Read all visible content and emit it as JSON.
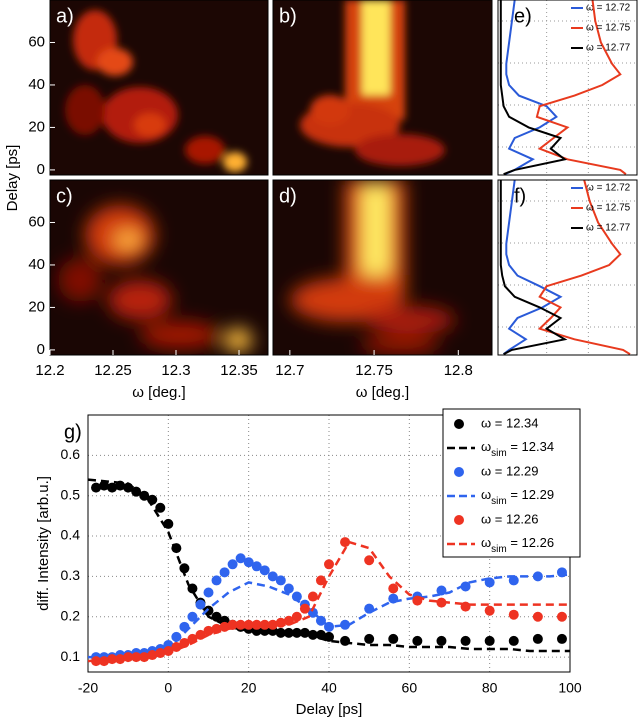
{
  "chart_data": [
    {
      "type": "heatmap",
      "label": "a)",
      "xlim": [
        12.2,
        12.373
      ],
      "ylim": [
        -2.4,
        80
      ],
      "yticks": [
        0,
        20,
        40,
        60
      ],
      "ylabel": "Delay [ps]"
    },
    {
      "type": "heatmap",
      "label": "b)",
      "xlim": [
        12.69,
        12.82
      ],
      "ylim": [
        -2.4,
        80
      ]
    },
    {
      "type": "profile",
      "label": "e)",
      "xlim": [
        0,
        1
      ],
      "ylim": [
        -2.4,
        80
      ],
      "delays": [
        80,
        70,
        60,
        50,
        45,
        40,
        35,
        30,
        25,
        20,
        15,
        10,
        5,
        0,
        -2
      ],
      "series": [
        {
          "name": "ω = 12.72",
          "color": "#2a5ad8",
          "values": [
            0.12,
            0.1,
            0.08,
            0.06,
            0.06,
            0.08,
            0.15,
            0.35,
            0.42,
            0.3,
            0.12,
            0.08,
            0.25,
            0.12,
            0.05
          ]
        },
        {
          "name": "ω = 12.75",
          "color": "#e83a1e",
          "values": [
            0.68,
            0.7,
            0.74,
            0.82,
            0.88,
            0.75,
            0.55,
            0.3,
            0.28,
            0.5,
            0.4,
            0.3,
            0.5,
            0.88,
            0.92
          ]
        },
        {
          "name": "ω = 12.77",
          "color": "#000000",
          "values": [
            0.02,
            0.02,
            0.02,
            0.02,
            0.02,
            0.02,
            0.03,
            0.04,
            0.08,
            0.22,
            0.45,
            0.38,
            0.48,
            0.12,
            0.04
          ]
        }
      ]
    },
    {
      "type": "heatmap",
      "label": "c)",
      "xlim": [
        12.2,
        12.373
      ],
      "ylim": [
        -2.4,
        80
      ],
      "yticks": [
        0,
        20,
        40,
        60
      ],
      "xticks": [
        12.2,
        12.25,
        12.3,
        12.35
      ],
      "xlabel": "ω [deg.]"
    },
    {
      "type": "heatmap",
      "label": "d)",
      "xlim": [
        12.69,
        12.82
      ],
      "ylim": [
        -2.4,
        80
      ],
      "xticks": [
        12.7,
        12.75,
        12.8
      ],
      "xlabel": "ω [deg.]"
    },
    {
      "type": "profile",
      "label": "f)",
      "xlim": [
        0,
        1
      ],
      "ylim": [
        -2.4,
        80
      ],
      "delays": [
        80,
        70,
        60,
        50,
        45,
        40,
        35,
        30,
        25,
        20,
        15,
        10,
        5,
        0,
        -2
      ],
      "series": [
        {
          "name": "ω = 12.72",
          "color": "#2a5ad8",
          "values": [
            0.12,
            0.1,
            0.08,
            0.06,
            0.06,
            0.08,
            0.14,
            0.3,
            0.45,
            0.32,
            0.14,
            0.08,
            0.2,
            0.08,
            0.04
          ]
        },
        {
          "name": "ω = 12.75",
          "color": "#e83a1e",
          "values": [
            0.62,
            0.66,
            0.72,
            0.82,
            0.88,
            0.8,
            0.6,
            0.35,
            0.3,
            0.45,
            0.38,
            0.3,
            0.55,
            0.9,
            0.95
          ]
        },
        {
          "name": "ω = 12.77",
          "color": "#000000",
          "values": [
            0.02,
            0.02,
            0.02,
            0.02,
            0.02,
            0.02,
            0.03,
            0.05,
            0.12,
            0.3,
            0.45,
            0.35,
            0.48,
            0.1,
            0.04
          ]
        }
      ]
    },
    {
      "type": "line",
      "label": "g)",
      "xlabel": "Delay [ps]",
      "ylabel": "diff. Intensity [arb.u.]",
      "xlim": [
        -20,
        100
      ],
      "xticks": [
        -20,
        0,
        20,
        40,
        60,
        80,
        100
      ],
      "ylim": [
        0.063,
        0.7
      ],
      "yticks": [
        0.1,
        0.2,
        0.3,
        0.4,
        0.5,
        0.6
      ],
      "grid": true,
      "series": [
        {
          "name": "ω = 12.34",
          "color": "#000000",
          "style": "markers",
          "x": [
            -18,
            -16,
            -14,
            -12,
            -10,
            -8,
            -6,
            -4,
            -2,
            0,
            2,
            4,
            6,
            8,
            10,
            12,
            14,
            16,
            18,
            20,
            22,
            24,
            26,
            28,
            30,
            32,
            34,
            36,
            38,
            40,
            44,
            50,
            56,
            62,
            68,
            74,
            80,
            86,
            92,
            98
          ],
          "values": [
            0.52,
            0.525,
            0.52,
            0.525,
            0.52,
            0.51,
            0.5,
            0.49,
            0.47,
            0.43,
            0.37,
            0.32,
            0.27,
            0.235,
            0.215,
            0.2,
            0.19,
            0.18,
            0.175,
            0.17,
            0.165,
            0.165,
            0.165,
            0.16,
            0.16,
            0.16,
            0.16,
            0.155,
            0.155,
            0.15,
            0.14,
            0.145,
            0.145,
            0.14,
            0.14,
            0.14,
            0.14,
            0.14,
            0.145,
            0.145
          ]
        },
        {
          "name": "ωsim = 12.34",
          "color": "#000000",
          "style": "dashed",
          "x": [
            -20,
            -15,
            -10,
            -5,
            0,
            5,
            10,
            15,
            20,
            25,
            30,
            35,
            40,
            45,
            50,
            55,
            60,
            65,
            70,
            75,
            80,
            85,
            90,
            95,
            100
          ],
          "values": [
            0.54,
            0.535,
            0.53,
            0.49,
            0.41,
            0.28,
            0.2,
            0.175,
            0.165,
            0.16,
            0.16,
            0.155,
            0.14,
            0.135,
            0.13,
            0.13,
            0.125,
            0.125,
            0.125,
            0.12,
            0.12,
            0.12,
            0.115,
            0.115,
            0.115
          ]
        },
        {
          "name": "ω = 12.29",
          "color": "#2f64ee",
          "style": "markers",
          "x": [
            -18,
            -16,
            -14,
            -12,
            -10,
            -8,
            -6,
            -4,
            -2,
            0,
            2,
            4,
            6,
            8,
            10,
            12,
            14,
            16,
            18,
            20,
            22,
            24,
            26,
            28,
            30,
            32,
            34,
            36,
            38,
            40,
            44,
            50,
            56,
            62,
            68,
            74,
            80,
            86,
            92,
            98
          ],
          "values": [
            0.1,
            0.1,
            0.1,
            0.105,
            0.105,
            0.11,
            0.11,
            0.115,
            0.12,
            0.13,
            0.15,
            0.175,
            0.2,
            0.23,
            0.26,
            0.29,
            0.31,
            0.33,
            0.345,
            0.335,
            0.325,
            0.315,
            0.3,
            0.29,
            0.27,
            0.25,
            0.23,
            0.21,
            0.19,
            0.175,
            0.18,
            0.22,
            0.245,
            0.25,
            0.265,
            0.275,
            0.285,
            0.29,
            0.3,
            0.31
          ]
        },
        {
          "name": "ωsim = 12.29",
          "color": "#2f64ee",
          "style": "dashed",
          "x": [
            -20,
            -15,
            -10,
            -5,
            0,
            5,
            10,
            15,
            20,
            25,
            30,
            35,
            40,
            45,
            50,
            55,
            60,
            65,
            70,
            75,
            80,
            85,
            90,
            95,
            100
          ],
          "values": [
            0.1,
            0.1,
            0.1,
            0.105,
            0.12,
            0.17,
            0.22,
            0.26,
            0.285,
            0.275,
            0.255,
            0.22,
            0.175,
            0.18,
            0.21,
            0.235,
            0.245,
            0.25,
            0.26,
            0.285,
            0.295,
            0.3,
            0.3,
            0.3,
            0.305
          ]
        },
        {
          "name": "ω = 12.26",
          "color": "#ee3322",
          "style": "markers",
          "x": [
            -18,
            -16,
            -14,
            -12,
            -10,
            -8,
            -6,
            -4,
            -2,
            0,
            2,
            4,
            6,
            8,
            10,
            12,
            14,
            16,
            18,
            20,
            22,
            24,
            26,
            28,
            30,
            32,
            34,
            36,
            38,
            40,
            44,
            50,
            56,
            62,
            68,
            74,
            80,
            86,
            92,
            98
          ],
          "values": [
            0.09,
            0.09,
            0.095,
            0.095,
            0.1,
            0.1,
            0.1,
            0.105,
            0.11,
            0.115,
            0.125,
            0.135,
            0.145,
            0.155,
            0.165,
            0.17,
            0.175,
            0.18,
            0.18,
            0.18,
            0.18,
            0.18,
            0.18,
            0.185,
            0.19,
            0.2,
            0.22,
            0.25,
            0.29,
            0.33,
            0.385,
            0.34,
            0.27,
            0.24,
            0.235,
            0.225,
            0.215,
            0.205,
            0.2,
            0.2
          ]
        },
        {
          "name": "ωsim = 12.26",
          "color": "#ee3322",
          "style": "dashed",
          "x": [
            -20,
            -15,
            -10,
            -5,
            0,
            5,
            10,
            15,
            20,
            25,
            30,
            35,
            40,
            45,
            50,
            55,
            60,
            65,
            70,
            75,
            80,
            85,
            90,
            95,
            100
          ],
          "values": [
            0.09,
            0.095,
            0.1,
            0.105,
            0.11,
            0.13,
            0.155,
            0.17,
            0.175,
            0.18,
            0.18,
            0.2,
            0.3,
            0.385,
            0.37,
            0.3,
            0.255,
            0.24,
            0.235,
            0.23,
            0.23,
            0.23,
            0.23,
            0.23,
            0.23
          ]
        }
      ]
    }
  ]
}
